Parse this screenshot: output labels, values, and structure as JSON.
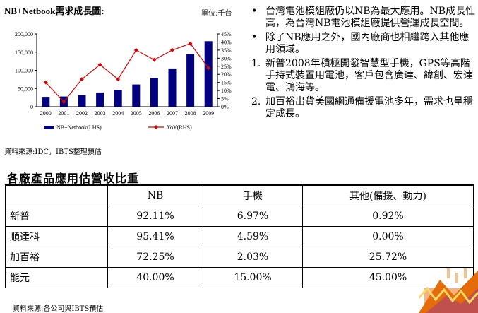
{
  "chart": {
    "title": "NB+Netbook需求成長圖:",
    "unit": "單位:千台",
    "source": "資料來源:IDC，IBTS整理預估"
  },
  "chart_data": {
    "type": "bar",
    "categories": [
      "2000",
      "2001",
      "2002",
      "2003",
      "2004",
      "2005",
      "2006",
      "2007",
      "2008",
      "2009"
    ],
    "series": [
      {
        "name": "NB+Netbook(LHS)",
        "type": "bar",
        "axis": "left",
        "color": "#000080",
        "values": [
          27000,
          28000,
          32000,
          39000,
          46000,
          61000,
          79000,
          105000,
          145000,
          180000
        ]
      },
      {
        "name": "YoY(RHS)",
        "type": "line",
        "axis": "right",
        "color": "#dd0000",
        "values": [
          15,
          3,
          17,
          26,
          17,
          35,
          29,
          35,
          39,
          24
        ]
      }
    ],
    "y_left": {
      "min": 0,
      "max": 200000,
      "ticks": [
        "0",
        "50,000",
        "100,000",
        "150,000",
        "200,000"
      ]
    },
    "y_right": {
      "min": 0,
      "max": 45,
      "ticks": [
        "0%",
        "5%",
        "10%",
        "15%",
        "20%",
        "25%",
        "30%",
        "35%",
        "40%",
        "45%"
      ]
    },
    "legend_position": "bottom"
  },
  "bullets": [
    "台灣電池模組廠仍以NB為最大應用。NB成長性高，為台灣NB電池模組廠提供營運成長空間。",
    "除了NB應用之外，國內廠商也相繼跨入其他應用領域。"
  ],
  "numbered": [
    {
      "num": "1.",
      "text": "新普2008年積極開發智慧型手機，GPS等高階手持式裝置用電池，客戶包含廣達、緯創、宏達電、鴻海等。"
    },
    {
      "num": "2.",
      "text": "加百裕出貨美國網通備援電池多年，需求也呈穩定成長。"
    }
  ],
  "bullet_marker": "•",
  "table": {
    "title": "各廠產品應用估營收比重",
    "headers": [
      "",
      "NB",
      "手機",
      "其他(備援、動力)"
    ],
    "rows": [
      [
        "新普",
        "92.11%",
        "6.97%",
        "0.92%"
      ],
      [
        "順達科",
        "95.41%",
        "4.59%",
        "0.00%"
      ],
      [
        "加百裕",
        "72.25%",
        "2.03%",
        "25.72%"
      ],
      [
        "能元",
        "40.00%",
        "15.00%",
        "45.00%"
      ]
    ],
    "source": "資料來源:各公司與IBTS預估"
  }
}
